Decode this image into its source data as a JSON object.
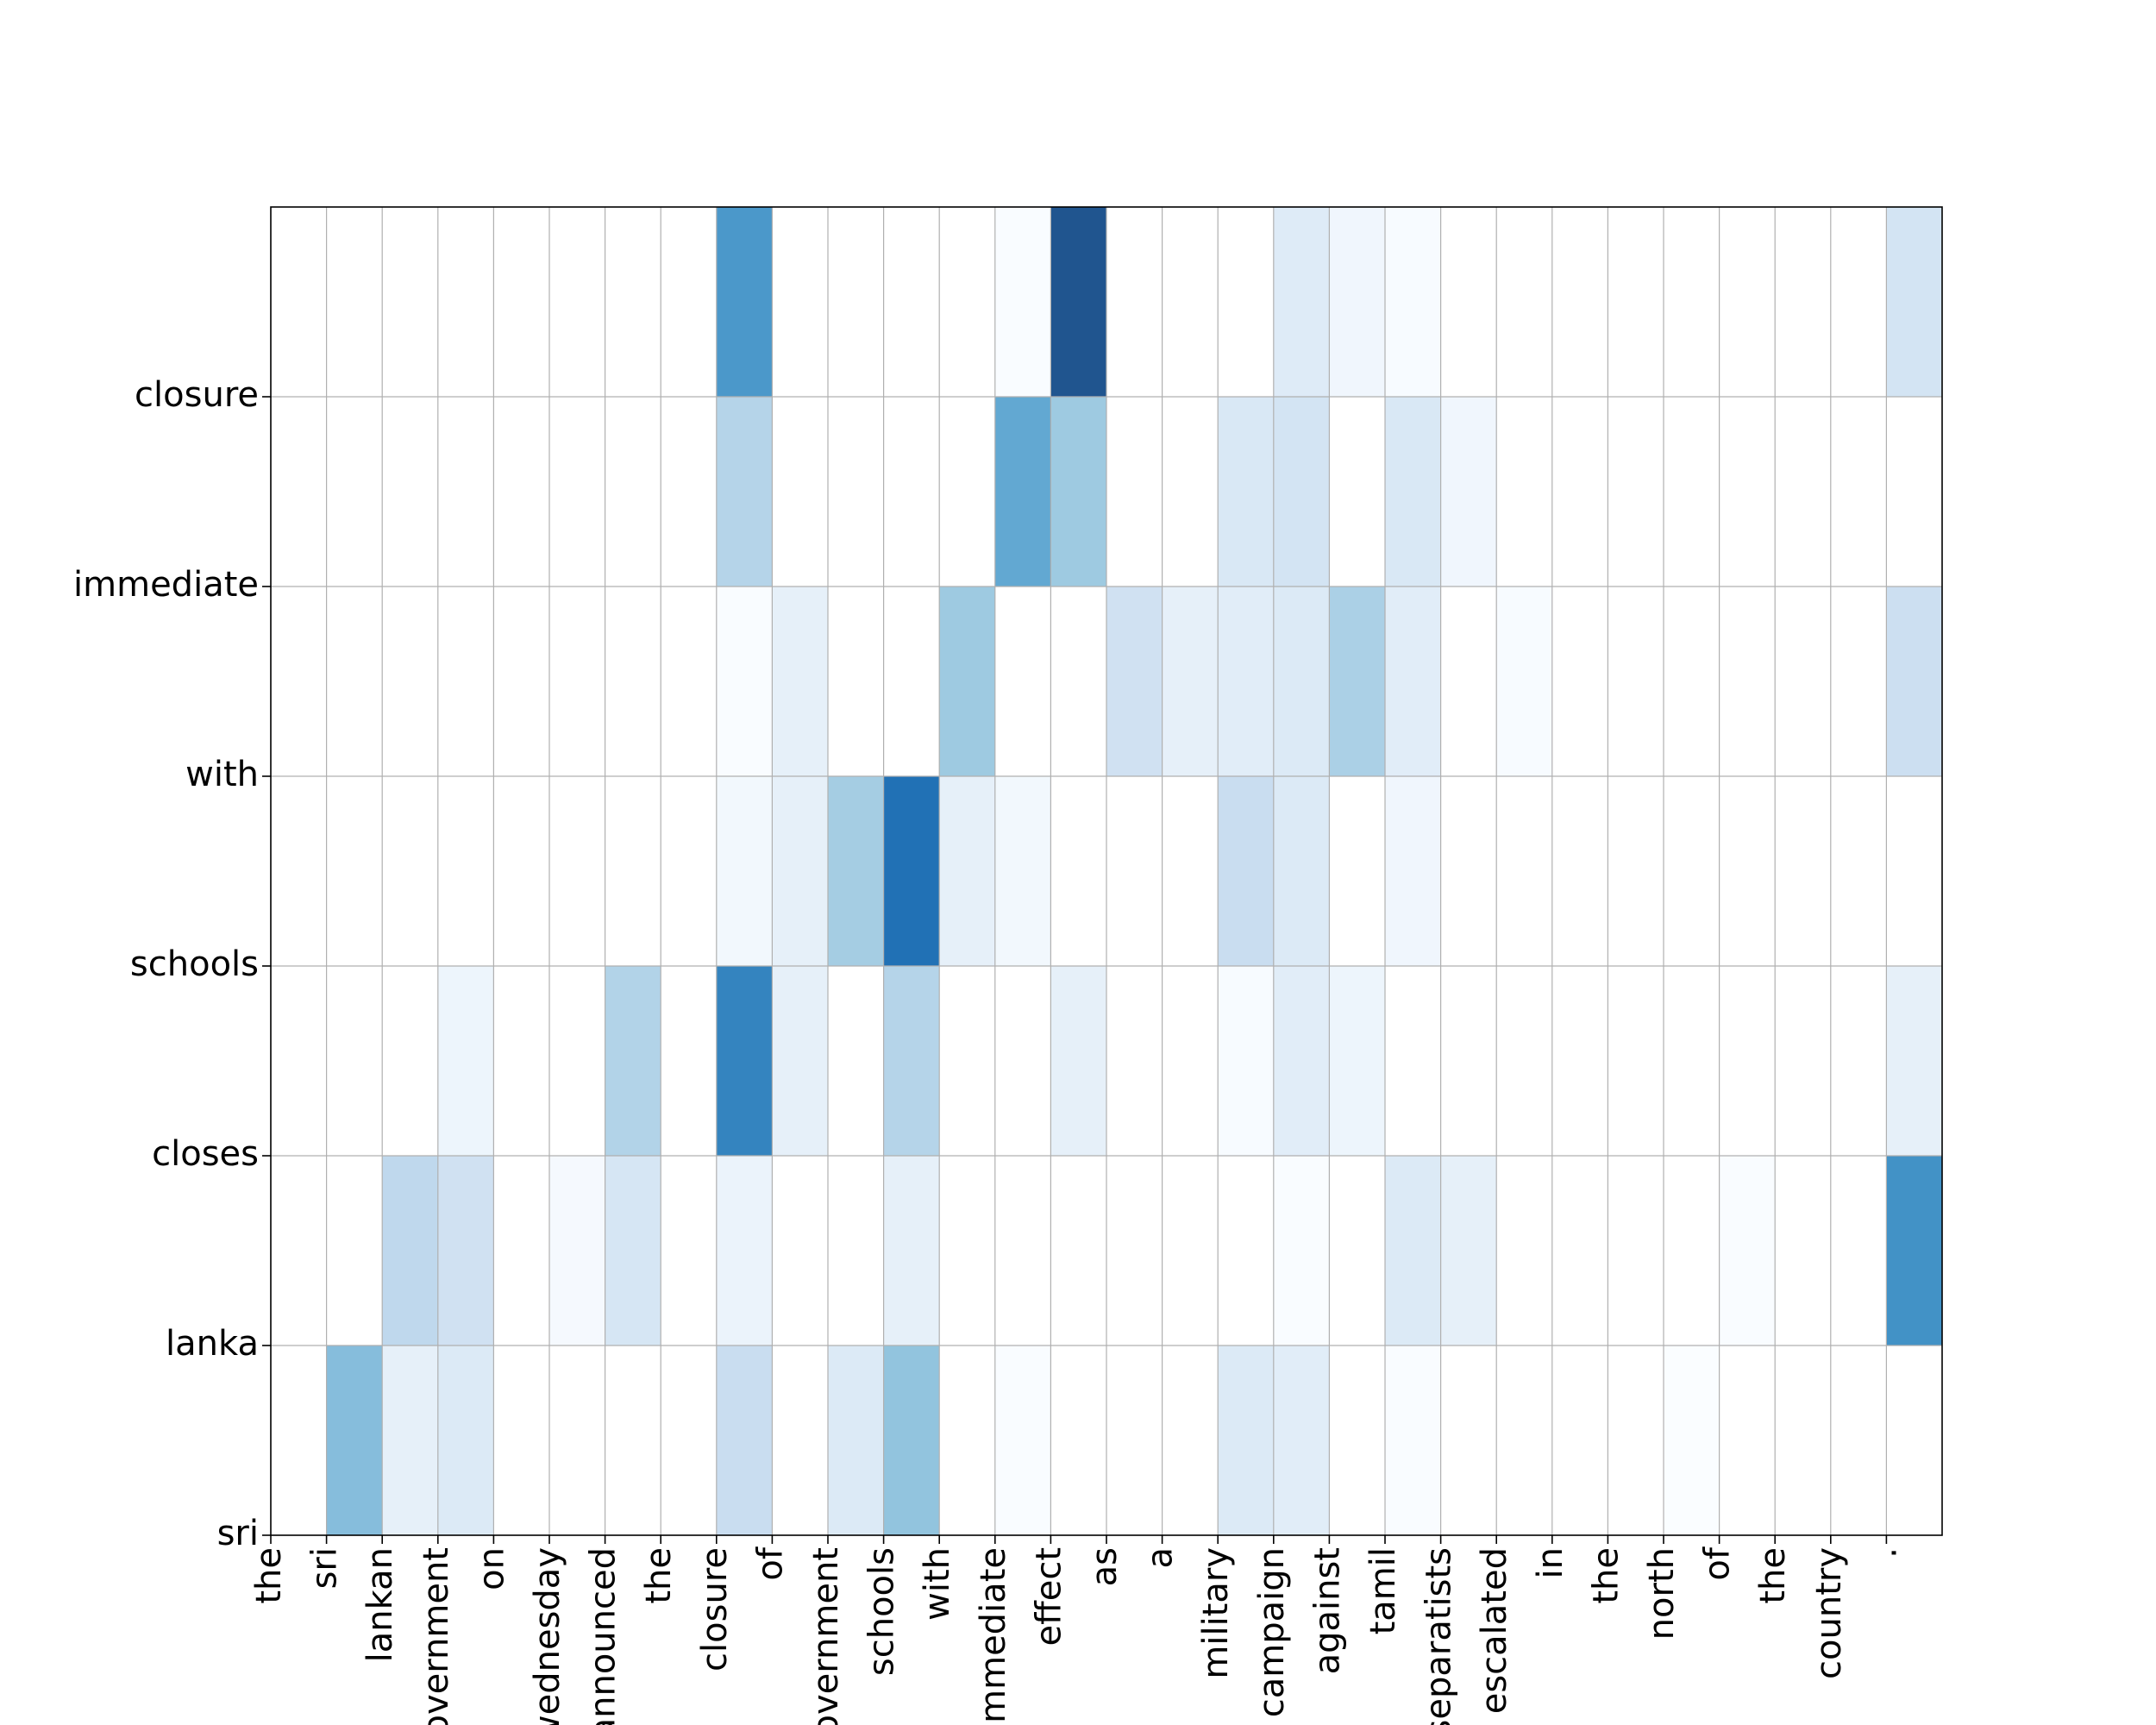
{
  "chart_data": {
    "type": "heatmap",
    "title": "",
    "xlabel": "",
    "ylabel": "",
    "x_labels": [
      "the",
      "sri",
      "lankan",
      "government",
      "on",
      "wednesday",
      "announced",
      "the",
      "closure",
      "of",
      "government",
      "schools",
      "with",
      "immediate",
      "effect",
      "as",
      "a",
      "military",
      "campaign",
      "against",
      "tamil",
      "separatists",
      "escalated",
      "in",
      "the",
      "north",
      "of",
      "the",
      "country",
      "."
    ],
    "y_labels_bottom_to_top": [
      "sri",
      "lanka",
      "closes",
      "schools",
      "with",
      "immediate",
      "closure"
    ],
    "values_top_to_bottom": [
      [
        0,
        0,
        0,
        0,
        0,
        0,
        0,
        0,
        0.65,
        0,
        0,
        0,
        0,
        0.04,
        0.92,
        0,
        0,
        0,
        0.15,
        0.08,
        0.05,
        0,
        0,
        0,
        0,
        0,
        0,
        0,
        0,
        0.22
      ],
      [
        0,
        0,
        0,
        0,
        0,
        0,
        0,
        0,
        0.35,
        0,
        0,
        0,
        0,
        0.58,
        0.42,
        0,
        0,
        0.18,
        0.22,
        0,
        0.18,
        0.08,
        0,
        0,
        0,
        0,
        0,
        0,
        0,
        0
      ],
      [
        0,
        0,
        0,
        0,
        0,
        0,
        0,
        0,
        0.04,
        0.12,
        0,
        0,
        0.42,
        0,
        0,
        0.24,
        0.12,
        0.14,
        0.16,
        0.38,
        0.14,
        0,
        0.05,
        0,
        0,
        0,
        0,
        0,
        0,
        0.26
      ],
      [
        0,
        0,
        0,
        0,
        0,
        0,
        0,
        0,
        0.07,
        0.12,
        0.4,
        0.8,
        0.12,
        0.07,
        0,
        0,
        0,
        0.28,
        0.16,
        0,
        0.08,
        0,
        0,
        0,
        0,
        0,
        0,
        0,
        0,
        0
      ],
      [
        0,
        0,
        0,
        0.09,
        0,
        0,
        0.36,
        0,
        0.73,
        0.12,
        0,
        0.35,
        0,
        0,
        0.12,
        0,
        0,
        0.05,
        0.14,
        0.09,
        0,
        0,
        0,
        0,
        0,
        0,
        0,
        0,
        0,
        0.12
      ],
      [
        0,
        0,
        0.32,
        0.24,
        0,
        0.06,
        0.2,
        0,
        0.1,
        0,
        0,
        0.12,
        0,
        0,
        0,
        0,
        0,
        0,
        0.04,
        0,
        0.16,
        0.12,
        0,
        0,
        0,
        0,
        0.04,
        0,
        0,
        0.68
      ],
      [
        0,
        0.48,
        0.12,
        0.16,
        0,
        0,
        0,
        0,
        0.28,
        0,
        0.16,
        0.45,
        0,
        0.04,
        0,
        0,
        0,
        0.16,
        0.14,
        0,
        0.04,
        0,
        0,
        0,
        0,
        0.03,
        0,
        0,
        0,
        0
      ]
    ],
    "colormap": "Blues",
    "grid": true,
    "low_color": "#ffffff",
    "high_color": "#1f4276"
  }
}
